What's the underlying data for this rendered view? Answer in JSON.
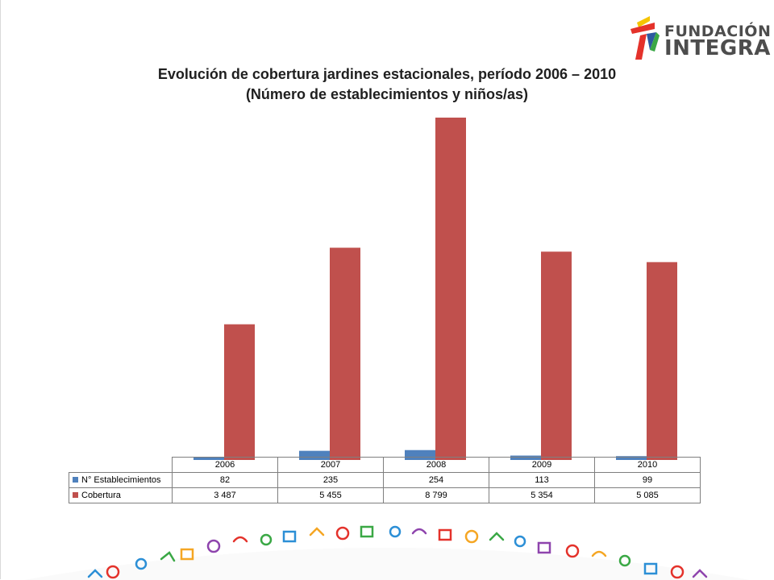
{
  "logo": {
    "line1": "FUNDACIÓN",
    "line2": "INTEGRA"
  },
  "title": {
    "line1": "Evolución de cobertura jardines estacionales, período 2006 – 2010",
    "line2": "(Número de establecimientos y niños/as)"
  },
  "chart_data": {
    "type": "bar",
    "categories": [
      "2006",
      "2007",
      "2008",
      "2009",
      "2010"
    ],
    "series": [
      {
        "name": "N° Establecimientos",
        "values": [
          82,
          235,
          254,
          113,
          99
        ],
        "labels": [
          "82",
          "235",
          "254",
          "113",
          "99"
        ],
        "color": "#4f81bd"
      },
      {
        "name": "Cobertura",
        "values": [
          3487,
          5455,
          8799,
          5354,
          5085
        ],
        "labels": [
          "3 487",
          "5 455",
          "8 799",
          "5 354",
          "5 085"
        ],
        "color": "#c0504d"
      }
    ],
    "title": "Evolución de cobertura jardines estacionales, período 2006 – 2010 (Número de establecimientos y niños/as)",
    "ylim": [
      0,
      9000
    ],
    "grid": false,
    "legend": "data-table"
  },
  "colors": {
    "series1": "#4f81bd",
    "series2": "#c0504d",
    "logo_text": "#4d4d4d"
  }
}
